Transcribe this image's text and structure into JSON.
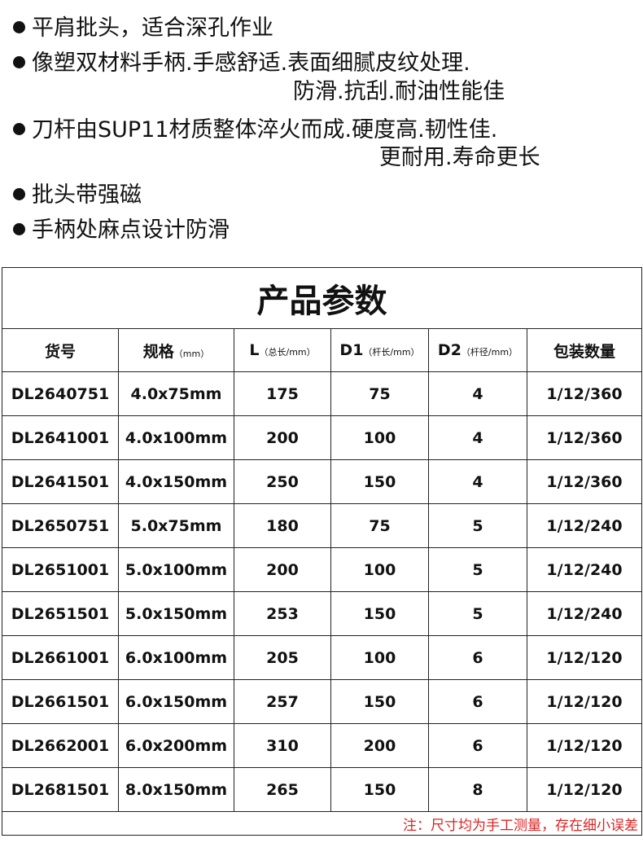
{
  "features": [
    {
      "text": "平肩批头，适合深孔作业"
    },
    {
      "text": "像塑双材料手柄.手感舒适.表面细腻皮纹处理.",
      "cont": "防滑.抗刮.耐油性能佳"
    },
    {
      "text": "刀杆由SUP11材质整体淬火而成.硬度高.韧性佳.",
      "cont": "更耐用.寿命更长"
    },
    {
      "text": "批头带强磁"
    },
    {
      "text": "手柄处麻点设计防滑"
    }
  ],
  "table": {
    "title": "产品参数",
    "headers": [
      {
        "main": "货号",
        "sub": ""
      },
      {
        "main": "规格",
        "sub": "（mm）"
      },
      {
        "main": "L",
        "sub": "（总长/mm）"
      },
      {
        "main": "D1",
        "sub": "（杆长/mm）"
      },
      {
        "main": "D2",
        "sub": "（杆径/mm）"
      },
      {
        "main": "包装数量",
        "sub": ""
      }
    ],
    "rows": [
      [
        "DL2640751",
        "4.0x75mm",
        "175",
        "75",
        "4",
        "1/12/360"
      ],
      [
        "DL2641001",
        "4.0x100mm",
        "200",
        "100",
        "4",
        "1/12/360"
      ],
      [
        "DL2641501",
        "4.0x150mm",
        "250",
        "150",
        "4",
        "1/12/360"
      ],
      [
        "DL2650751",
        "5.0x75mm",
        "180",
        "75",
        "5",
        "1/12/240"
      ],
      [
        "DL2651001",
        "5.0x100mm",
        "200",
        "100",
        "5",
        "1/12/240"
      ],
      [
        "DL2651501",
        "5.0x150mm",
        "253",
        "150",
        "5",
        "1/12/240"
      ],
      [
        "DL2661001",
        "6.0x100mm",
        "205",
        "100",
        "6",
        "1/12/120"
      ],
      [
        "DL2661501",
        "6.0x150mm",
        "257",
        "150",
        "6",
        "1/12/120"
      ],
      [
        "DL2662001",
        "6.0x200mm",
        "310",
        "200",
        "6",
        "1/12/120"
      ],
      [
        "DL2681501",
        "8.0x150mm",
        "265",
        "150",
        "8",
        "1/12/120"
      ]
    ],
    "note": "注：尺寸均为手工测量，存在细小误差",
    "note_color": "#d22"
  }
}
